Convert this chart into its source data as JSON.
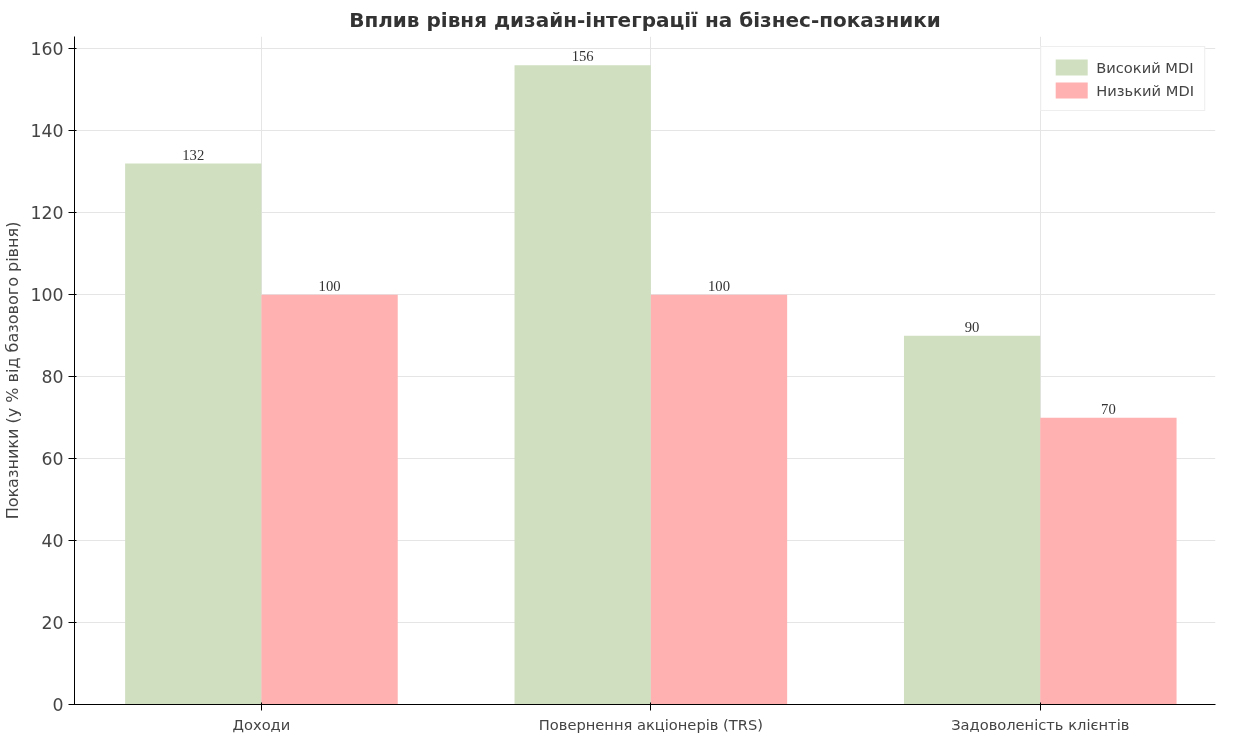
{
  "chart_data": {
    "type": "bar",
    "title": "Вплив рівня дизайн-інтеграції на бізнес-показники",
    "ylabel": "Показники (у % від базового рівня)",
    "categories": [
      "Доходи",
      "Повернення акціонерів (TRS)",
      "Задоволеність клієнтів"
    ],
    "series": [
      {
        "name": "Високий MDI",
        "color": "#d0dfc0",
        "values": [
          132,
          156,
          90
        ]
      },
      {
        "name": "Низький MDI",
        "color": "#ffb0b0",
        "values": [
          100,
          100,
          70
        ]
      }
    ],
    "ylim": [
      0,
      163
    ],
    "yticks": [
      0,
      20,
      40,
      60,
      80,
      100,
      120,
      140,
      160
    ],
    "grid": true,
    "legend": "top right",
    "data_labels": true
  }
}
